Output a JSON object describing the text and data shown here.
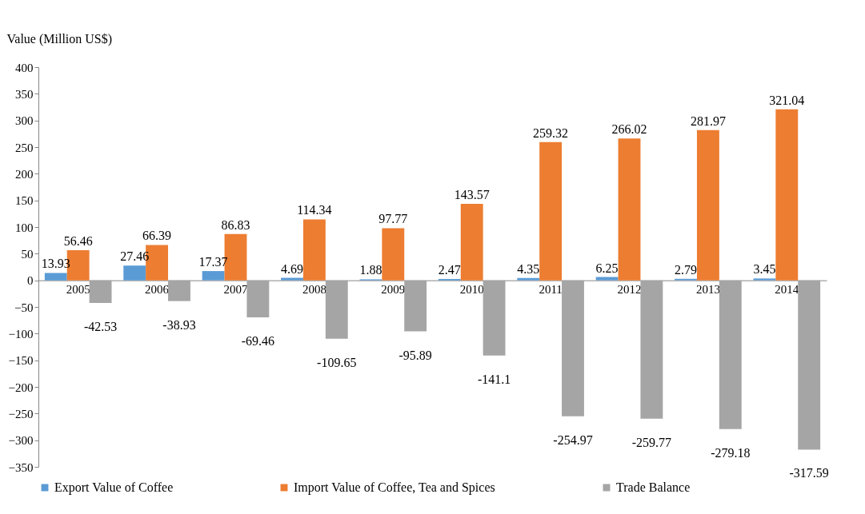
{
  "chart_data": {
    "type": "bar",
    "ylabel": "Value (Million  US$)",
    "categories": [
      "2005",
      "2006",
      "2007",
      "2008",
      "2009",
      "2010",
      "2011",
      "2012",
      "2013",
      "2014"
    ],
    "series": [
      {
        "name": "Export Value of Coffee",
        "color": "#5b9bd5",
        "values": [
          13.93,
          27.46,
          17.37,
          4.69,
          1.88,
          2.47,
          4.35,
          6.25,
          2.79,
          3.45
        ]
      },
      {
        "name": "Import Value of Coffee, Tea and Spices",
        "color": "#ed7d31",
        "values": [
          56.46,
          66.39,
          86.83,
          114.34,
          97.77,
          143.57,
          259.32,
          266.02,
          281.97,
          321.04
        ]
      },
      {
        "name": "Trade Balance",
        "color": "#a5a5a5",
        "values": [
          -42.53,
          -38.93,
          -69.46,
          -109.65,
          -95.89,
          -141.1,
          -254.97,
          -259.77,
          -279.18,
          -317.59
        ]
      }
    ],
    "ylim": [
      -350,
      400
    ],
    "yticks": [
      -350,
      -300,
      -250,
      -200,
      -150,
      -100,
      -50,
      0,
      50,
      100,
      150,
      200,
      250,
      300,
      350,
      400
    ],
    "grid": false,
    "legend": "bottom",
    "data_labels": true
  }
}
